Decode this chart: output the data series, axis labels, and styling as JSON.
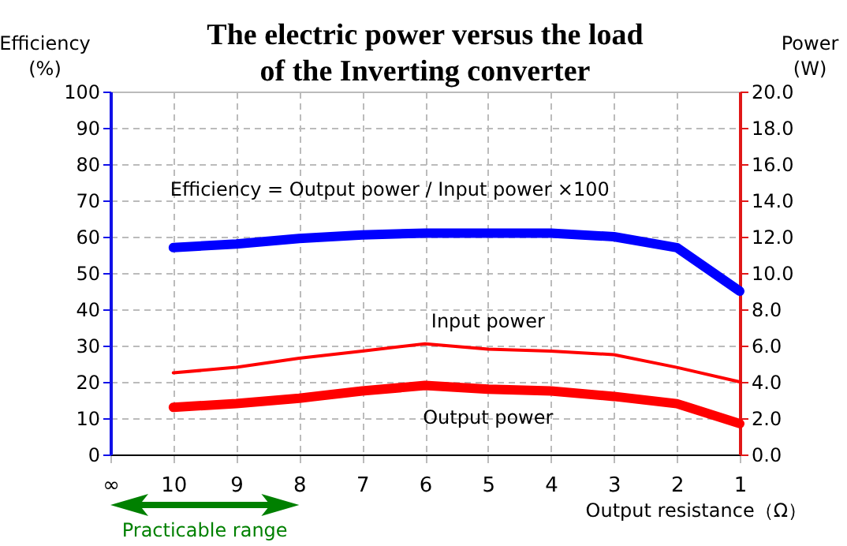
{
  "chart_data": {
    "type": "line",
    "title": "The electric power versus the load of the Inverting converter",
    "xlabel": "Output resistance（Ω）",
    "ylabel": "Efficiency (%)",
    "y2label": "Power (W)",
    "categories": [
      "∞",
      "10",
      "9",
      "8",
      "7",
      "6",
      "5",
      "4",
      "3",
      "2",
      "1"
    ],
    "series": [
      {
        "color": "#0000ff",
        "values": [
          null,
          57,
          58,
          59.5,
          60.5,
          61,
          61,
          61,
          60,
          57,
          45
        ]
      },
      {
        "name": "Input power",
        "color": "#ff0000",
        "axis": "y2",
        "values": [
          null,
          4.5,
          4.8,
          5.3,
          5.7,
          6.1,
          5.8,
          5.7,
          5.5,
          4.8,
          4.0
        ]
      },
      {
        "name": "Output power",
        "color": "#ff0000",
        "axis": "y2",
        "values": [
          null,
          2.6,
          2.8,
          3.1,
          3.5,
          3.8,
          3.6,
          3.5,
          3.2,
          2.8,
          1.7
        ]
      }
    ],
    "ylim": [
      0,
      100
    ],
    "yticks": [
      0,
      10,
      20,
      30,
      40,
      50,
      60,
      70,
      80,
      90,
      100
    ],
    "y2lim": [
      0,
      20
    ],
    "y2ticks": [
      {
        "value": 0,
        "label": "0.0"
      },
      {
        "value": 2,
        "label": "2.0"
      },
      {
        "value": 4,
        "label": "4.0"
      },
      {
        "value": 6,
        "label": "6.0"
      },
      {
        "value": 8,
        "label": "8.0"
      },
      {
        "value": 10,
        "label": "10.0"
      },
      {
        "value": 12,
        "label": "12.0"
      },
      {
        "value": 14,
        "label": "14.0"
      },
      {
        "value": 16,
        "label": "16.0"
      },
      {
        "value": 18,
        "label": "18.0"
      },
      {
        "value": 20,
        "label": "20.0"
      }
    ],
    "annotations": [
      "Efficiency = Output power / Input power ×100",
      "Practicable range"
    ],
    "grid": true,
    "marker": "none",
    "line_style": "solid"
  }
}
